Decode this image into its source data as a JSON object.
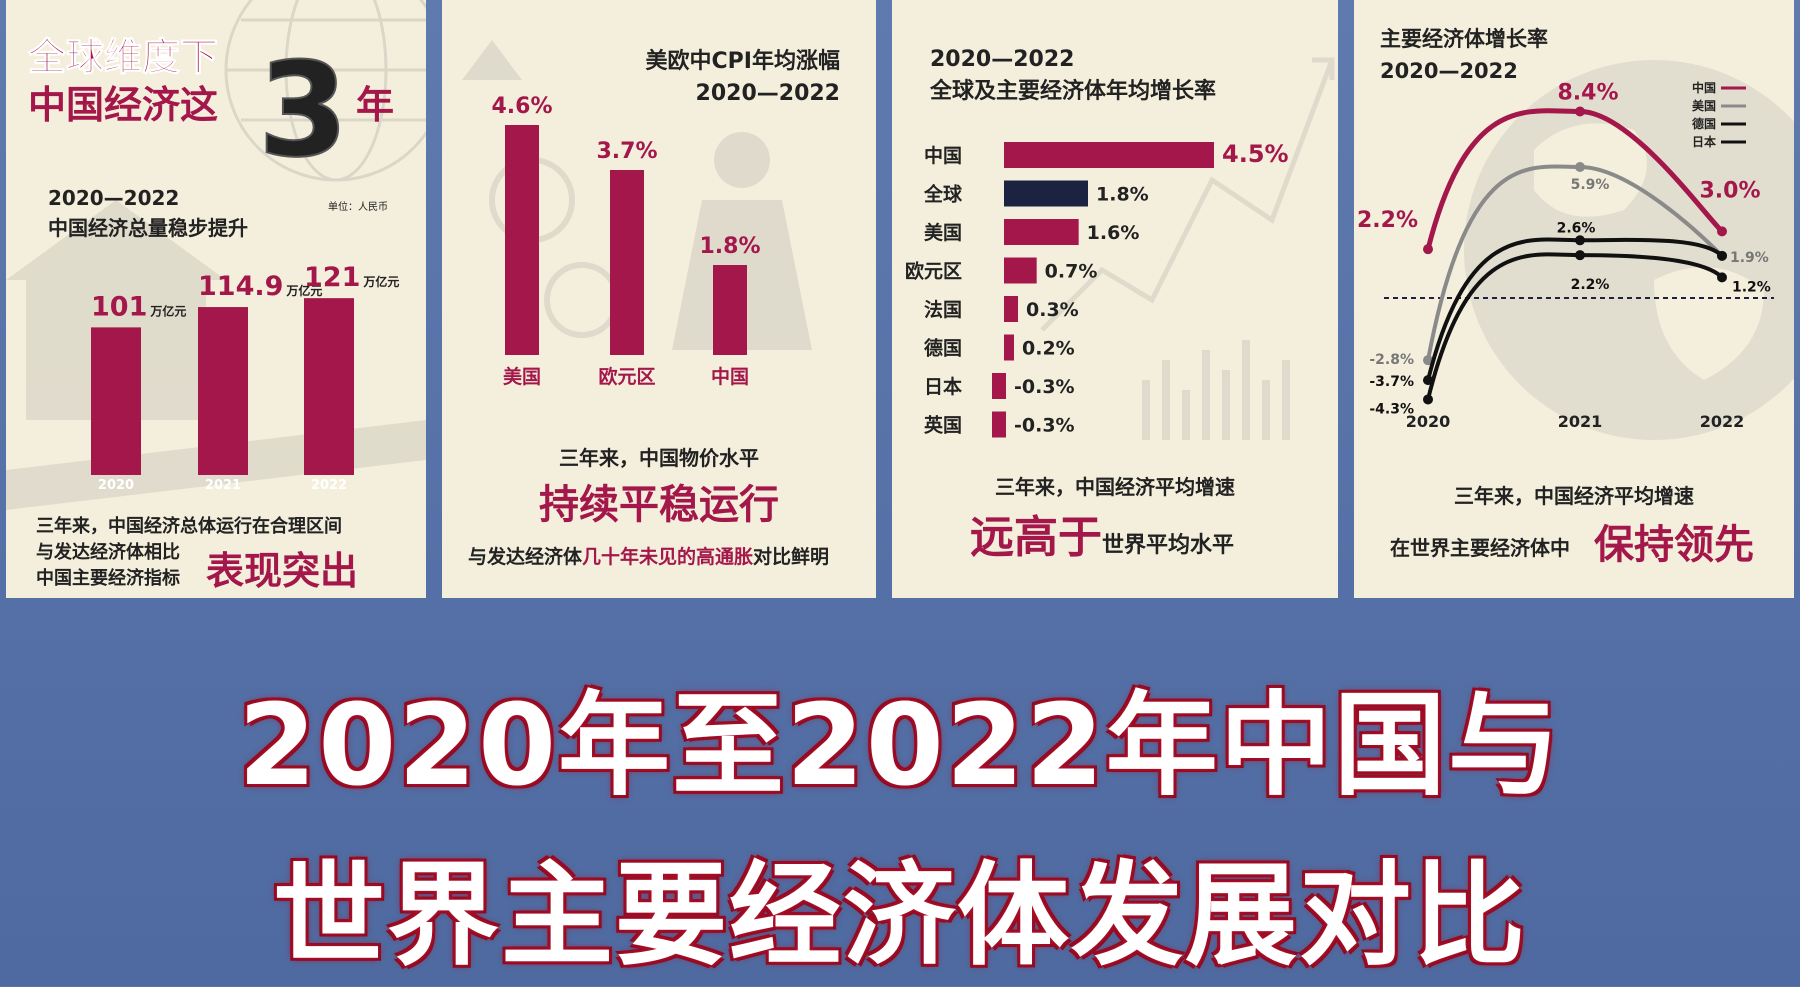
{
  "colors": {
    "accent": "#a3174a",
    "dark": "#1c2340",
    "gray": "#8a8a8a",
    "bg": "#f4efdd",
    "page": "#5a74a8"
  },
  "panels": [
    {
      "title1": "全球维度下",
      "title2": "中国经济这",
      "big_num": "3",
      "title3": "年",
      "sub_years": "2020—2022",
      "sub_text": "中国经济总量稳步提升",
      "unit": "单位：人民币",
      "unit_suffix": "万亿元",
      "foot1": "三年来，中国经济总体运行在合理区间",
      "foot2": "与发达经济体相比",
      "foot3": "中国主要经济指标",
      "foot_big": "表现突出"
    },
    {
      "title": "美欧中CPI年均涨幅",
      "years": "2020—2022",
      "foot1": "三年来，中国物价水平",
      "foot_big": "持续平稳运行",
      "foot2a": "与发达经济体",
      "foot2b": "几十年未见的高通胀",
      "foot2c": "对比鲜明"
    },
    {
      "years": "2020—2022",
      "title": "全球及主要经济体年均增长率",
      "foot1": "三年来，中国经济平均增速",
      "foot_big": "远高于",
      "foot2": "世界平均水平"
    },
    {
      "title": "主要经济体增长率",
      "years": "2020—2022",
      "foot1": "三年来，中国经济平均增速",
      "foot2": "在世界主要经济体中",
      "foot_big": "保持领先"
    }
  ],
  "headline": {
    "line1": "2020年至2022年中国与",
    "line2": "世界主要经济体发展对比"
  },
  "chart_data": [
    {
      "type": "bar",
      "categories": [
        "2020",
        "2021",
        "2022"
      ],
      "values": [
        101,
        114.9,
        121
      ],
      "value_labels": [
        "101",
        "114.9",
        "121"
      ],
      "ylim": [
        0,
        130
      ]
    },
    {
      "type": "bar",
      "categories": [
        "美国",
        "欧元区",
        "中国"
      ],
      "values": [
        4.6,
        3.7,
        1.8
      ],
      "value_labels": [
        "4.6%",
        "3.7%",
        "1.8%"
      ],
      "ylim": [
        0,
        5
      ]
    },
    {
      "type": "bar",
      "orientation": "horizontal",
      "categories": [
        "中国",
        "全球",
        "美国",
        "欧元区",
        "法国",
        "德国",
        "日本",
        "英国"
      ],
      "values": [
        4.5,
        1.8,
        1.6,
        0.7,
        0.3,
        0.2,
        -0.3,
        -0.3
      ],
      "value_labels": [
        "4.5%",
        "1.8%",
        "1.6%",
        "0.7%",
        "0.3%",
        "0.2%",
        "-0.3%",
        "-0.3%"
      ]
    },
    {
      "type": "line",
      "x": [
        "2020",
        "2021",
        "2022"
      ],
      "ylim": [
        -5,
        9
      ],
      "series": [
        {
          "name": "中国",
          "values": [
            2.2,
            8.4,
            3.0
          ],
          "labels": [
            "2.2%",
            "8.4%",
            "3.0%"
          ],
          "color": "#a3174a"
        },
        {
          "name": "美国",
          "values": [
            -2.8,
            5.9,
            1.9
          ],
          "labels": [
            "-2.8%",
            "5.9%",
            "1.9%"
          ],
          "color": "#8a8a8a"
        },
        {
          "name": "德国",
          "values": [
            -3.7,
            2.6,
            1.9
          ],
          "labels": [
            "-3.7%",
            "2.6%",
            ""
          ],
          "color": "#111111"
        },
        {
          "name": "日本",
          "values": [
            -4.3,
            2.2,
            1.2
          ],
          "labels": [
            "-4.3%",
            "2.2%",
            "1.2%"
          ],
          "color": "#111111"
        }
      ]
    }
  ]
}
